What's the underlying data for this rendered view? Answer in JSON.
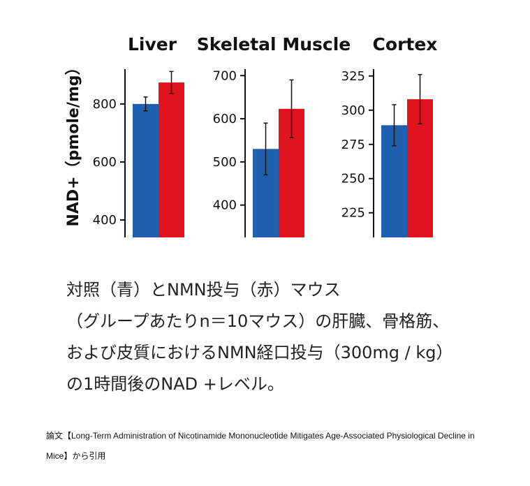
{
  "chart_data": {
    "type": "bar",
    "ylabel": "NAD+（pmole/mg）",
    "colors": {
      "control": "#1f5fb0",
      "nmn": "#e0141e"
    },
    "panels": [
      {
        "title": "Liver",
        "ylim": [
          340,
          920
        ],
        "yticks": [
          400,
          600,
          800
        ],
        "values": [
          800,
          874
        ],
        "errors": [
          24,
          38
        ]
      },
      {
        "title": "Skeletal Muscle",
        "ylim": [
          325,
          715
        ],
        "yticks": [
          400,
          500,
          600,
          700
        ],
        "values": [
          530,
          623
        ],
        "errors": [
          60,
          67
        ]
      },
      {
        "title": "Cortex",
        "ylim": [
          207,
          330
        ],
        "yticks": [
          225,
          250,
          275,
          300,
          325
        ],
        "values": [
          289,
          308
        ],
        "errors": [
          15,
          18
        ]
      }
    ]
  },
  "caption": [
    "対照（青）とNMN投与（赤）マウス",
    "（グループあたりn＝10マウス）の肝臓、骨格筋、",
    "および皮質におけるNMN経口投与（300mg / kg）",
    "の1時間後のNAD +レベル。"
  ],
  "citation": [
    "論文【Long-Term Administration of Nicotinamide Mononucleotide Mitigates Age-Associated Physiological Decline in",
    "Mice】から引用"
  ]
}
